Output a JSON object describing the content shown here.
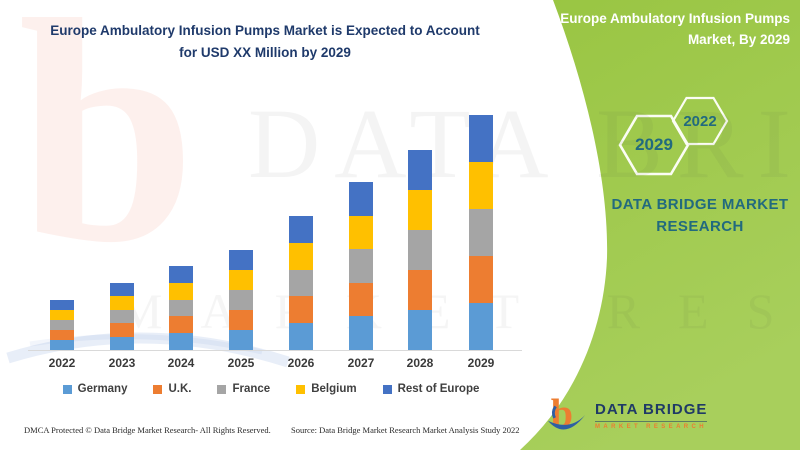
{
  "colors": {
    "panel_green_top": "#99c542",
    "panel_green_bottom": "#a8cf5c",
    "teal_text": "#226a7e",
    "navy_text": "#1f3a6b",
    "logo_orange": "#ed7d31",
    "logo_navy": "#1f3a66",
    "axis_line": "#d9d9d9"
  },
  "header": {
    "title_line1": "Europe Ambulatory Infusion Pumps Market is Expected to Account",
    "title_line2": "for USD XX Million by 2029"
  },
  "panel": {
    "title_line1": "Europe Ambulatory Infusion Pumps",
    "title_line2": "Market, By 2029",
    "hexagons": [
      {
        "label": "2029"
      },
      {
        "label": "2022"
      }
    ],
    "brand_line1": "DATA BRIDGE MARKET",
    "brand_line2": "RESEARCH"
  },
  "chart_data": {
    "type": "bar",
    "stacked": true,
    "title": "Europe Ambulatory Infusion Pumps Market is Expected to Account for USD XX Million by 2029",
    "categories": [
      "2022",
      "2023",
      "2024",
      "2025",
      "2026",
      "2027",
      "2028",
      "2029"
    ],
    "series": [
      {
        "name": "Germany",
        "color": "#5B9BD5",
        "values": [
          10,
          13.4,
          16.8,
          20,
          26.8,
          33.6,
          40,
          47
        ]
      },
      {
        "name": "U.K.",
        "color": "#ED7D31",
        "values": [
          10,
          13.4,
          16.8,
          20,
          26.8,
          33.6,
          40,
          47
        ]
      },
      {
        "name": "France",
        "color": "#A5A5A5",
        "values": [
          10,
          13.4,
          16.8,
          20,
          26.8,
          33.6,
          40,
          47
        ]
      },
      {
        "name": "Belgium",
        "color": "#FFC000",
        "values": [
          10,
          13.4,
          16.8,
          20,
          26.8,
          33.6,
          40,
          47
        ]
      },
      {
        "name": "Rest of Europe",
        "color": "#4472C4",
        "values": [
          10,
          13.4,
          16.8,
          20,
          26.8,
          33.6,
          40,
          47
        ]
      }
    ],
    "xlabel": "",
    "ylabel": "",
    "units": "relative units (USD values masked as 'XX' in image, no value axis shown)",
    "legend_position": "bottom",
    "grid": false
  },
  "watermark": {
    "brand_top": "DATA BRIDGE",
    "brand_bottom": "MARKET RESEARCH",
    "letter_b": "b"
  },
  "footer": {
    "dmca": "DMCA Protected © Data Bridge Market Research- All Rights Reserved.",
    "source": "Source: Data Bridge Market Research Market Analysis Study 2022",
    "logo_title": "DATA BRIDGE",
    "logo_subtitle": "MARKET RESEARCH"
  }
}
